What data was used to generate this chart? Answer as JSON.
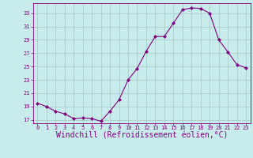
{
  "x": [
    0,
    1,
    2,
    3,
    4,
    5,
    6,
    7,
    8,
    9,
    10,
    11,
    12,
    13,
    14,
    15,
    16,
    17,
    18,
    19,
    20,
    21,
    22,
    23
  ],
  "y": [
    19.5,
    19.0,
    18.3,
    17.9,
    17.2,
    17.3,
    17.2,
    16.8,
    18.3,
    20.0,
    23.0,
    24.7,
    27.3,
    29.5,
    29.5,
    31.5,
    33.5,
    33.8,
    33.7,
    33.0,
    29.0,
    27.2,
    25.3,
    24.8
  ],
  "line_color": "#800080",
  "marker": "D",
  "marker_size": 2,
  "bg_color": "#c8ecec",
  "grid_color": "#a8c8c8",
  "xlabel": "Windchill (Refroidissement éolien,°C)",
  "xlabel_fontsize": 7,
  "tick_label_color": "#800080",
  "tick_fontsize": 5,
  "ylim": [
    16.5,
    34.5
  ],
  "xlim": [
    -0.5,
    23.5
  ],
  "yticks": [
    17,
    19,
    21,
    23,
    25,
    27,
    29,
    31,
    33
  ],
  "xticks": [
    0,
    1,
    2,
    3,
    4,
    5,
    6,
    7,
    8,
    9,
    10,
    11,
    12,
    13,
    14,
    15,
    16,
    17,
    18,
    19,
    20,
    21,
    22,
    23
  ]
}
